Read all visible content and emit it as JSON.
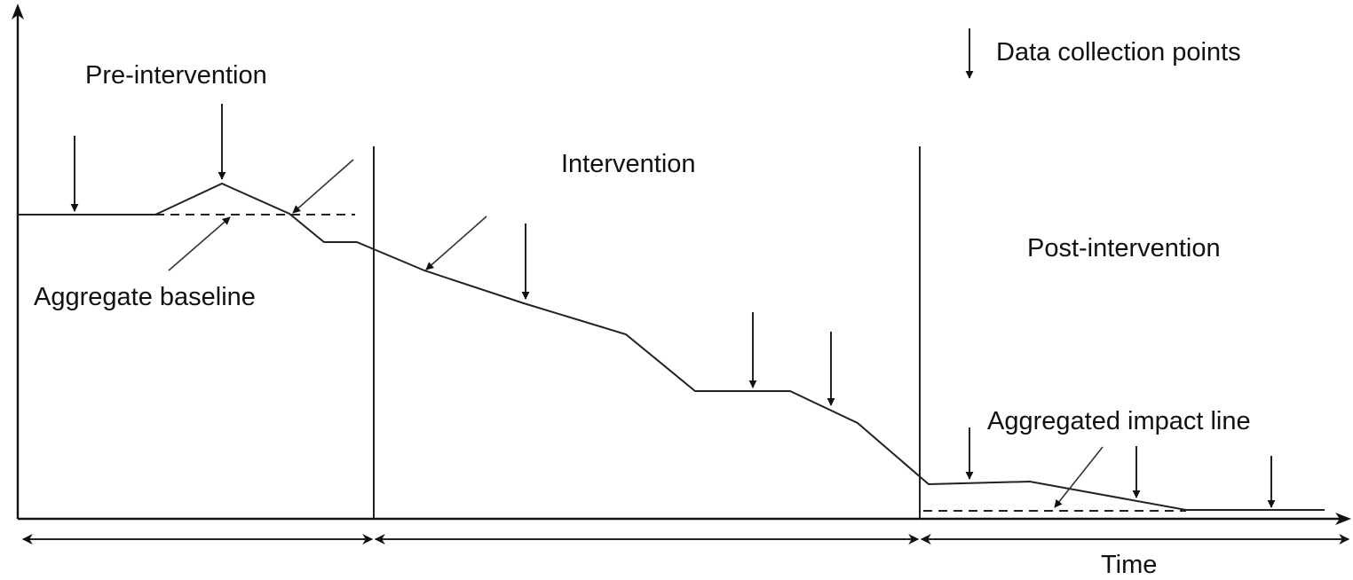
{
  "labels": {
    "pre_intervention": "Pre-intervention",
    "intervention": "Intervention",
    "post_intervention": "Post-intervention",
    "aggregate_baseline": "Aggregate baseline",
    "aggregated_impact_line": "Aggregated impact line",
    "data_collection_points": "Data collection points",
    "time": "Time"
  },
  "colors": {
    "line": "#222222",
    "text": "#111111",
    "background": "#ffffff"
  }
}
